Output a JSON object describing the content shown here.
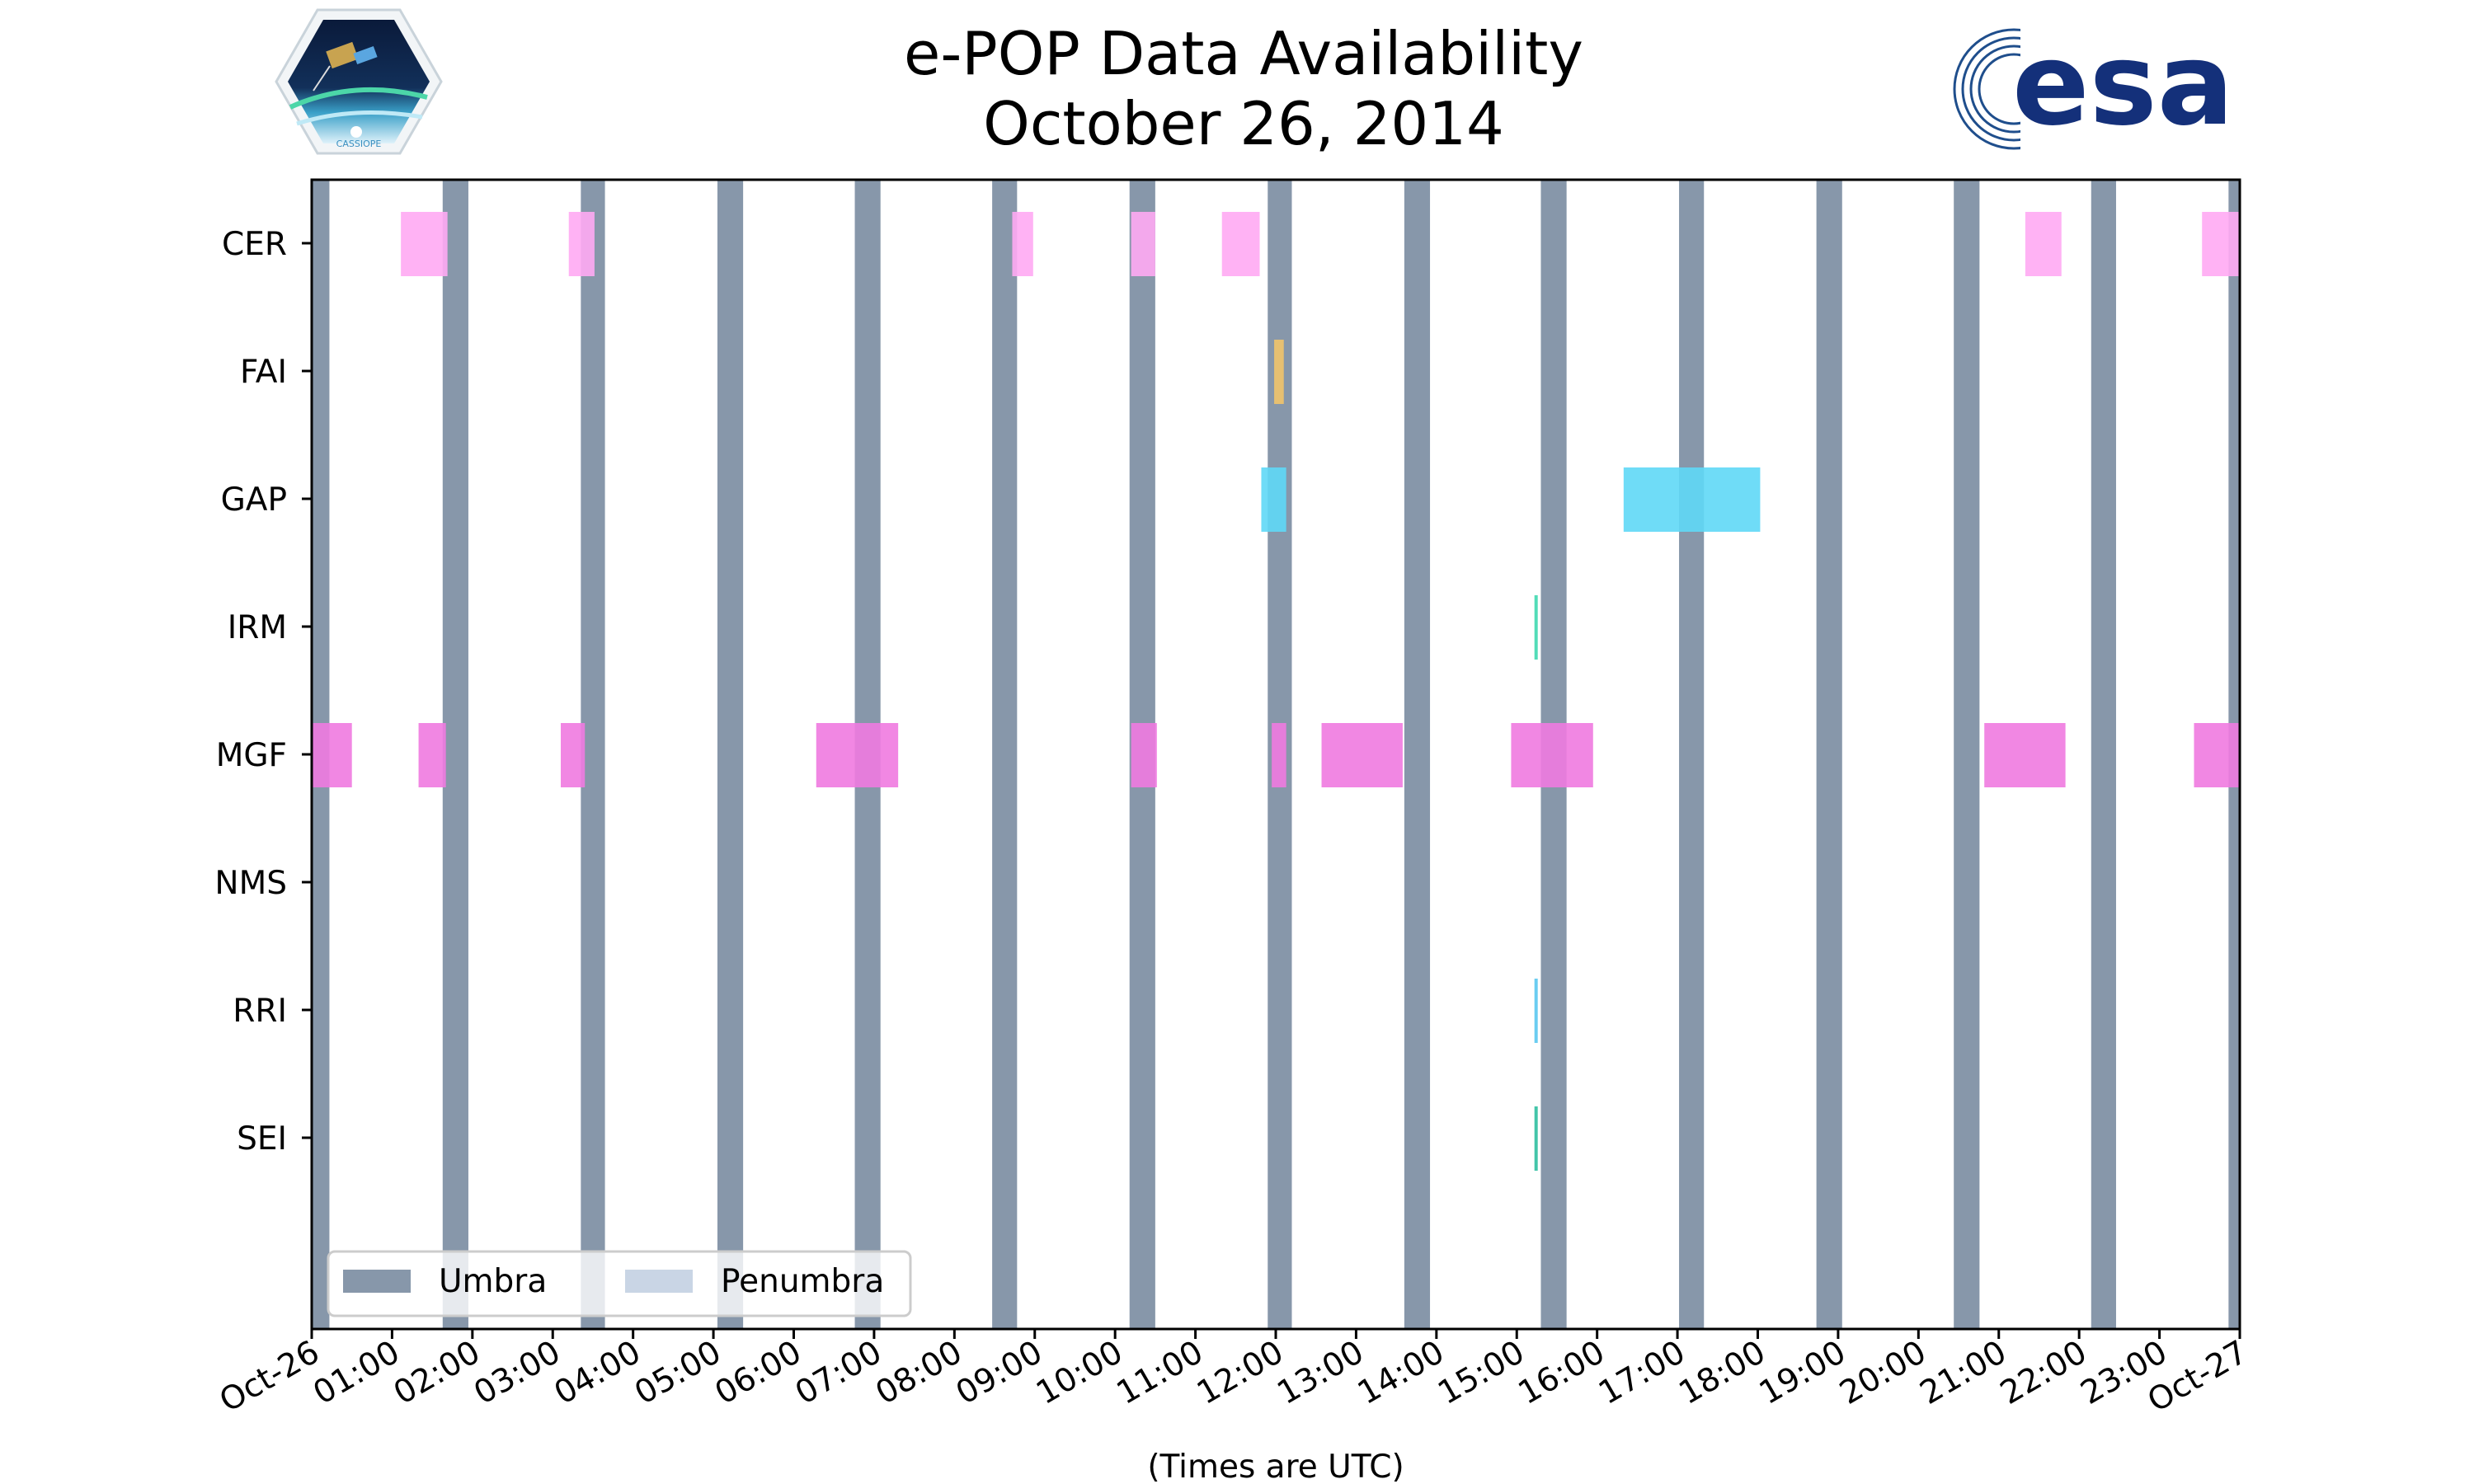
{
  "title_line1": "e-POP Data Availability",
  "title_line2": "October 26, 2014",
  "logos": {
    "left": "CASSIOPE",
    "right": "esa"
  },
  "colors": {
    "umbra": "#8797aa",
    "penumbra": "#c9d5e5",
    "CER": "#ffaaf3",
    "FAI": "#f2c46a",
    "GAP": "#5fd8f6",
    "IRM": "#3fd8b0",
    "MGF": "#f07ae0",
    "NMS": "#999999",
    "RRI": "#5ac8f0",
    "SEI": "#2fbfa0"
  },
  "chart_data": {
    "type": "timeline",
    "title": "e-POP Data Availability\nOctober 26, 2014",
    "xlabel": "(Times are UTC)",
    "x_unit": "hours UTC since 2014-10-26 00:00",
    "xlim": [
      0,
      24
    ],
    "x_ticks": [
      0,
      1,
      2,
      3,
      4,
      5,
      6,
      7,
      8,
      9,
      10,
      11,
      12,
      13,
      14,
      15,
      16,
      17,
      18,
      19,
      20,
      21,
      22,
      23,
      24
    ],
    "x_tick_labels": [
      "Oct-26",
      "01:00",
      "02:00",
      "03:00",
      "04:00",
      "05:00",
      "06:00",
      "07:00",
      "08:00",
      "09:00",
      "10:00",
      "11:00",
      "12:00",
      "13:00",
      "14:00",
      "15:00",
      "16:00",
      "17:00",
      "18:00",
      "19:00",
      "20:00",
      "21:00",
      "22:00",
      "23:00",
      "Oct-27"
    ],
    "instruments": [
      "CER",
      "FAI",
      "GAP",
      "IRM",
      "MGF",
      "NMS",
      "RRI",
      "SEI"
    ],
    "umbra": [
      [
        0.0,
        0.22
      ],
      [
        1.63,
        1.95
      ],
      [
        3.35,
        3.65
      ],
      [
        5.05,
        5.37
      ],
      [
        6.76,
        7.08
      ],
      [
        8.47,
        8.78
      ],
      [
        10.18,
        10.5
      ],
      [
        11.9,
        12.2
      ],
      [
        13.6,
        13.92
      ],
      [
        15.3,
        15.62
      ],
      [
        17.02,
        17.33
      ],
      [
        18.73,
        19.05
      ],
      [
        20.44,
        20.76
      ],
      [
        22.15,
        22.46
      ],
      [
        23.86,
        24.0
      ]
    ],
    "penumbra": [],
    "segments": {
      "CER": [
        [
          1.11,
          1.69
        ],
        [
          3.2,
          3.52
        ],
        [
          8.72,
          8.98
        ],
        [
          10.2,
          10.5
        ],
        [
          11.33,
          11.8
        ],
        [
          21.33,
          21.78
        ],
        [
          23.53,
          24.0
        ]
      ],
      "FAI": [
        [
          11.98,
          12.1
        ]
      ],
      "GAP": [
        [
          11.82,
          12.13
        ],
        [
          16.33,
          18.03
        ]
      ],
      "IRM": [
        [
          15.22,
          15.26
        ]
      ],
      "MGF": [
        [
          0.0,
          0.5
        ],
        [
          1.33,
          1.67
        ],
        [
          3.1,
          3.4
        ],
        [
          6.28,
          7.3
        ],
        [
          10.2,
          10.52
        ],
        [
          11.95,
          12.13
        ],
        [
          12.57,
          13.58
        ],
        [
          14.93,
          15.95
        ],
        [
          20.82,
          21.83
        ],
        [
          23.43,
          24.0
        ]
      ],
      "NMS": [],
      "RRI": [
        [
          15.22,
          15.26
        ]
      ],
      "SEI": [
        [
          15.22,
          15.26
        ]
      ]
    },
    "legend": {
      "position": "lower-left",
      "entries": [
        "Umbra",
        "Penumbra"
      ]
    }
  }
}
